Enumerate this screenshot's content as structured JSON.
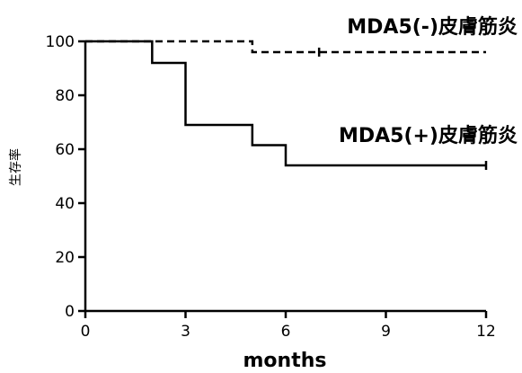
{
  "chart_data": {
    "type": "line",
    "title": "",
    "xlabel": "months",
    "ylabel": "生存率",
    "xlim": [
      0,
      12
    ],
    "ylim": [
      0,
      100
    ],
    "xticks": [
      0,
      3,
      6,
      9,
      12
    ],
    "yticks": [
      0,
      20,
      40,
      60,
      80,
      100
    ],
    "grid": false,
    "series": [
      {
        "name": "MDA5(-)皮膚筋炎",
        "style": "dashed",
        "color": "#000000",
        "x": [
          0,
          5,
          5,
          12
        ],
        "y": [
          100,
          100,
          96,
          96
        ],
        "censor_x": [
          7
        ],
        "censor_y": [
          96
        ]
      },
      {
        "name": "MDA5(+)皮膚筋炎",
        "style": "solid",
        "color": "#000000",
        "x": [
          0,
          2,
          2,
          3,
          3,
          5,
          5,
          6,
          6,
          12
        ],
        "y": [
          100,
          100,
          92,
          92,
          69,
          69,
          61.5,
          61.5,
          54,
          54
        ],
        "censor_x": [
          12
        ],
        "censor_y": [
          54
        ]
      }
    ]
  }
}
